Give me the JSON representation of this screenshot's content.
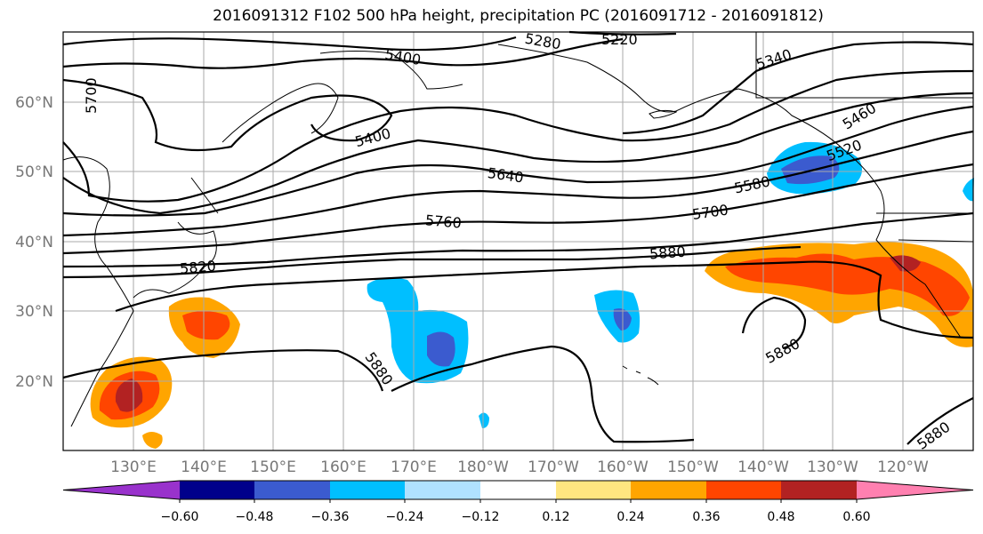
{
  "title": "2016091312 F102 500 hPa height, precipitation PC (2016091712 - 2016091812)",
  "lon_labels": [
    "130°E",
    "140°E",
    "150°E",
    "160°E",
    "170°E",
    "180°W",
    "170°W",
    "160°W",
    "150°W",
    "140°W",
    "130°W",
    "120°W"
  ],
  "lat_labels": [
    "60°N",
    "50°N",
    "40°N",
    "30°N",
    "20°N"
  ],
  "contour_labels": [
    "5220",
    "5280",
    "5340",
    "5400",
    "5400",
    "5460",
    "5520",
    "5580",
    "5640",
    "5700",
    "5700",
    "5760",
    "5820",
    "5880",
    "5880",
    "5880",
    "5880"
  ],
  "colorbar": {
    "ticks": [
      "−0.60",
      "−0.48",
      "−0.36",
      "−0.24",
      "−0.12",
      "0.12",
      "0.24",
      "0.36",
      "0.48",
      "0.60"
    ],
    "colors": [
      "#9932cc",
      "#00008b",
      "#3b5bcf",
      "#00bfff",
      "#b0e2ff",
      "#ffffff",
      "#ffe680",
      "#ffa500",
      "#ff4500",
      "#b22222",
      "#ff80b0"
    ]
  },
  "chart_data": {
    "type": "map",
    "variable": "500 hPa height, precipitation PC",
    "lon_range": [
      "130°E",
      "120°W"
    ],
    "lat_range": [
      "20°N",
      "60°N"
    ],
    "contour_levels": [
      5220,
      5280,
      5340,
      5400,
      5460,
      5520,
      5580,
      5640,
      5700,
      5760,
      5820,
      5880
    ],
    "colorbar_levels": [
      -0.6,
      -0.48,
      -0.36,
      -0.24,
      -0.12,
      0.12,
      0.24,
      0.36,
      0.48,
      0.6
    ]
  }
}
